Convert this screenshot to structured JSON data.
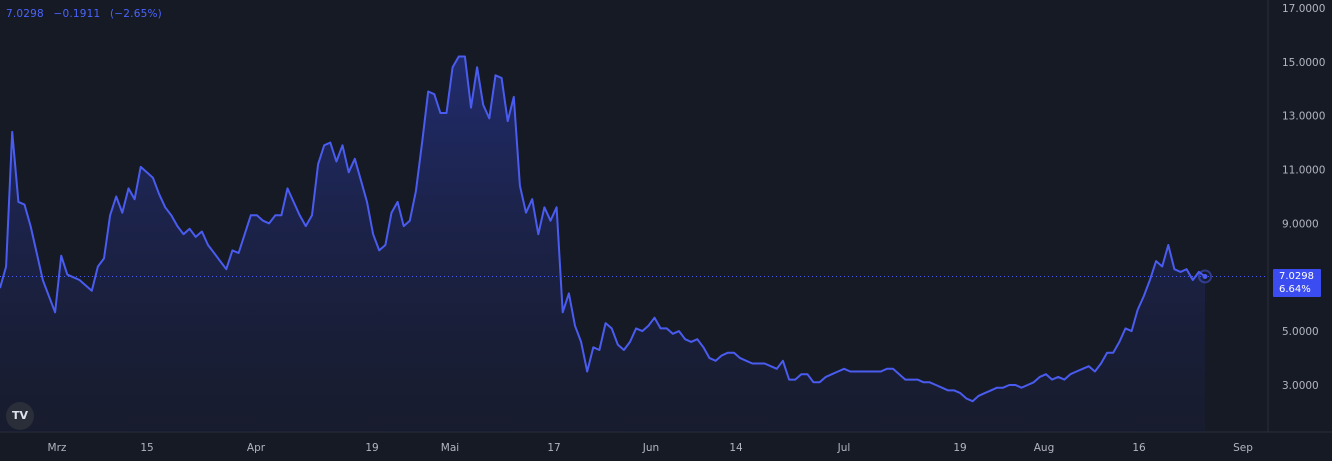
{
  "legend": {
    "last": "7.0298",
    "change": "−0.1911",
    "change_pct": "(−2.65%)"
  },
  "price_tag": {
    "value": "7.0298",
    "pct": "6.64%"
  },
  "logo_text": "TV",
  "colors": {
    "background": "#161a25",
    "line": "#4a5cf0",
    "price_tag": "#3b4cf0",
    "text": "#b2b5be"
  },
  "chart_data": {
    "type": "area",
    "y_axis_ticks": [
      "17.0000",
      "15.0000",
      "13.0000",
      "11.0000",
      "9.0000",
      "5.0000",
      "3.0000"
    ],
    "y_tick_values": [
      17,
      15,
      13,
      11,
      9,
      5,
      3
    ],
    "x_axis_ticks": [
      "Mrz",
      "15",
      "Apr",
      "19",
      "Mai",
      "17",
      "Jun",
      "14",
      "Jul",
      "19",
      "Aug",
      "16",
      "Sep"
    ],
    "ylim": [
      1.2,
      17.3
    ],
    "last_value": 7.0298,
    "series": [
      {
        "values": [
          6.6,
          7.4,
          12.4,
          9.8,
          9.7,
          8.9,
          7.9,
          6.9,
          6.3,
          5.7,
          7.8,
          7.1,
          7.0,
          6.9,
          6.7,
          6.5,
          7.4,
          7.7,
          9.3,
          10.0,
          9.4,
          10.3,
          9.9,
          11.1,
          10.9,
          10.7,
          10.1,
          9.6,
          9.3,
          8.9,
          8.6,
          8.8,
          8.5,
          8.7,
          8.2,
          7.9,
          7.6,
          7.3,
          8.0,
          7.9,
          8.6,
          9.3,
          9.3,
          9.1,
          9.0,
          9.3,
          9.3,
          10.3,
          9.8,
          9.3,
          8.9,
          9.3,
          11.2,
          11.9,
          12.0,
          11.3,
          11.9,
          10.9,
          11.4,
          10.6,
          9.8,
          8.6,
          8.0,
          8.2,
          9.4,
          9.8,
          8.9,
          9.1,
          10.2,
          12.0,
          13.9,
          13.8,
          13.1,
          13.1,
          14.8,
          15.2,
          15.2,
          13.3,
          14.8,
          13.4,
          12.9,
          14.5,
          14.4,
          12.8,
          13.7,
          10.4,
          9.4,
          9.9,
          8.6,
          9.6,
          9.1,
          9.6,
          5.7,
          6.4,
          5.2,
          4.6,
          3.5,
          4.4,
          4.3,
          5.3,
          5.1,
          4.5,
          4.3,
          4.6,
          5.1,
          5.0,
          5.2,
          5.5,
          5.1,
          5.1,
          4.9,
          5.0,
          4.7,
          4.6,
          4.7,
          4.4,
          4.0,
          3.9,
          4.1,
          4.2,
          4.2,
          4.0,
          3.9,
          3.8,
          3.8,
          3.8,
          3.7,
          3.6,
          3.9,
          3.2,
          3.2,
          3.4,
          3.4,
          3.1,
          3.1,
          3.3,
          3.4,
          3.5,
          3.6,
          3.5,
          3.5,
          3.5,
          3.5,
          3.5,
          3.5,
          3.6,
          3.6,
          3.4,
          3.2,
          3.2,
          3.2,
          3.1,
          3.1,
          3.0,
          2.9,
          2.8,
          2.8,
          2.7,
          2.5,
          2.4,
          2.6,
          2.7,
          2.8,
          2.9,
          2.9,
          3.0,
          3.0,
          2.9,
          3.0,
          3.1,
          3.3,
          3.4,
          3.2,
          3.3,
          3.2,
          3.4,
          3.5,
          3.6,
          3.7,
          3.5,
          3.8,
          4.2,
          4.2,
          4.6,
          5.1,
          5.0,
          5.8,
          6.3,
          6.9,
          7.6,
          7.4,
          8.2,
          7.3,
          7.2,
          7.3,
          6.9,
          7.2,
          7.0298
        ]
      }
    ]
  }
}
